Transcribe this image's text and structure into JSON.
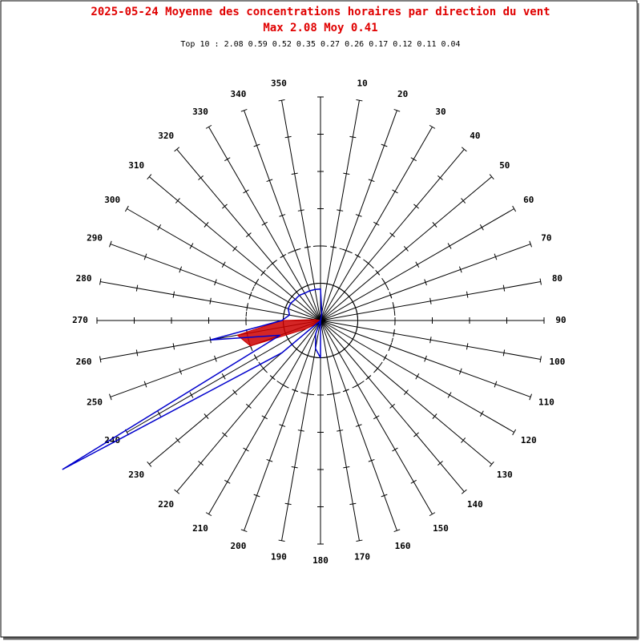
{
  "chart_data": {
    "type": "polar",
    "title": "2025-05-24 Moyenne des concentrations horaires par direction du vent",
    "subtitle": "Max 2.08 Moy 0.41",
    "annotation": "Top 10 : 2.08 0.59 0.52 0.35 0.27 0.26 0.17 0.12 0.11 0.04",
    "categories": [
      null,
      "10",
      "20",
      "30",
      "40",
      "50",
      "60",
      "70",
      "80",
      "90",
      "100",
      "110",
      "120",
      "130",
      "140",
      "150",
      "160",
      "170",
      "180",
      "190",
      "200",
      "210",
      "220",
      "230",
      "240",
      "250",
      "260",
      "270",
      "280",
      "290",
      "300",
      "310",
      "320",
      "330",
      "340",
      "350"
    ],
    "rlim": [
      0,
      1.56
    ],
    "rticks": [
      0.26,
      0.52,
      0.78,
      1.04,
      1.3,
      1.56
    ],
    "circles": [
      {
        "value": 0.26,
        "style": "solid"
      },
      {
        "value": 0.52,
        "style": "dashed"
      }
    ],
    "series": [
      {
        "color": "#0000cc",
        "fill": false,
        "values": [
          0.22,
          0.05,
          0,
          0,
          0,
          0,
          0,
          0,
          0,
          0,
          0,
          0,
          0,
          0,
          0,
          0,
          0,
          0,
          0.26,
          0.2,
          0.1,
          0,
          0,
          0.35,
          2.08,
          0.3,
          0.78,
          0.27,
          0.22,
          0.24,
          0.24,
          0.23,
          0.23,
          0.22,
          0.22,
          0.22
        ]
      },
      {
        "color": "#cc0000",
        "fill": true,
        "values": [
          0,
          0,
          0,
          0,
          0,
          0,
          0,
          0,
          0,
          0,
          0,
          0,
          0,
          0,
          0,
          0,
          0,
          0,
          0,
          0,
          0,
          0,
          0,
          0.04,
          0.12,
          0.52,
          0.59,
          0.27,
          0.04,
          0,
          0,
          0,
          0,
          0,
          0,
          0
        ]
      }
    ]
  }
}
